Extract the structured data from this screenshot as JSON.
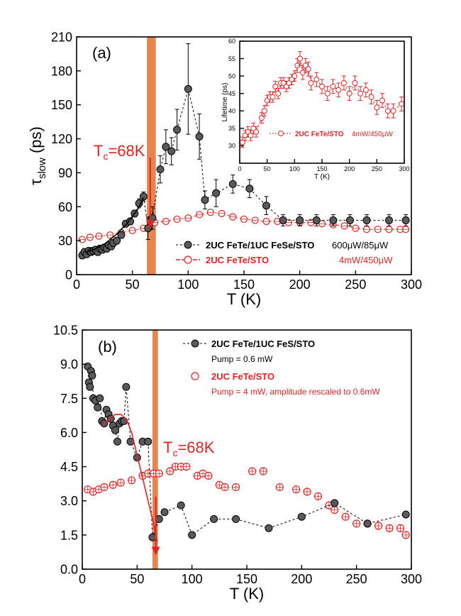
{
  "colors": {
    "black_series": "#5a5a5a",
    "red_series": "#e32222",
    "tc_band": "#e8844e",
    "annotation": "#e32222"
  },
  "chart_data": [
    {
      "type": "scatter",
      "panel_label": "(a)",
      "xlabel": "T (K)",
      "ylabel_main": "τ",
      "ylabel_sub": "slow",
      "ylabel_unit": " (ps)",
      "xlim": [
        0,
        300
      ],
      "ylim": [
        0,
        210
      ],
      "xticks": [
        0,
        50,
        100,
        150,
        200,
        250,
        300
      ],
      "yticks": [
        0,
        30,
        60,
        90,
        120,
        150,
        180,
        210
      ],
      "tc_band": [
        63,
        71
      ],
      "tc_label": "T",
      "tc_sub": "c",
      "tc_value": "=68K",
      "legend": [
        {
          "name": "2UC FeTe/1UC FeSe/STO",
          "power": "600μW/85μW"
        },
        {
          "name": "2UC FeTe/STO",
          "power": "4mW/450μW"
        }
      ],
      "series": [
        {
          "name": "2UC FeTe/1UC FeSe/STO",
          "x": [
            5,
            7,
            9,
            11,
            13,
            15,
            17,
            19,
            21,
            23,
            25,
            27,
            29,
            31,
            33,
            36,
            40,
            44,
            48,
            52,
            56,
            60,
            64,
            68,
            75,
            80,
            85,
            90,
            100,
            110,
            115,
            125,
            140,
            155,
            170,
            185,
            200,
            215,
            230,
            245,
            260,
            280,
            295
          ],
          "y": [
            17,
            20,
            18,
            21,
            20,
            21,
            22,
            20,
            23,
            22,
            24,
            23,
            26,
            25,
            28,
            30,
            35,
            45,
            47,
            54,
            63,
            69,
            41,
            50,
            93,
            113,
            109,
            128,
            164,
            122,
            66,
            72,
            80,
            76,
            61,
            48,
            48,
            48,
            48,
            48,
            48,
            48,
            48
          ],
          "err": [
            3,
            3,
            3,
            3,
            3,
            3,
            3,
            3,
            3,
            3,
            3,
            3,
            3,
            3,
            3,
            3,
            3,
            3,
            3,
            3,
            4,
            4,
            10,
            10,
            12,
            15,
            12,
            18,
            40,
            20,
            8,
            12,
            8,
            8,
            8,
            5,
            5,
            5,
            5,
            5,
            5,
            5,
            5
          ]
        },
        {
          "name": "2UC FeTe/STO",
          "x": [
            5,
            12,
            20,
            30,
            40,
            50,
            60,
            70,
            80,
            90,
            100,
            110,
            120,
            130,
            140,
            150,
            160,
            170,
            180,
            190,
            200,
            210,
            220,
            230,
            240,
            250,
            260,
            270,
            280,
            290,
            295
          ],
          "y": [
            31,
            33,
            34,
            35,
            37,
            39,
            41,
            46,
            47,
            49,
            50,
            53,
            55,
            54,
            51,
            49,
            48,
            47,
            47,
            46,
            46,
            46,
            45,
            44,
            43,
            41,
            40,
            40,
            40,
            40,
            40
          ]
        }
      ],
      "fit_curve": {
        "x": [
          8,
          15,
          25,
          35,
          45,
          55,
          60
        ],
        "y": [
          20,
          22,
          27,
          35,
          45,
          58,
          68
        ]
      },
      "inset": {
        "xlabel": "T (K)",
        "ylabel": "Lifetime (ps)",
        "xlim": [
          0,
          300
        ],
        "ylim": [
          25,
          60
        ],
        "xticks": [
          0,
          50,
          100,
          150,
          200,
          250,
          300
        ],
        "yticks": [
          30,
          35,
          40,
          45,
          50,
          55,
          60
        ],
        "legend_name": "2UC FeTe/STO",
        "legend_power": "4mW/450μW",
        "x": [
          5,
          10,
          15,
          20,
          25,
          30,
          40,
          45,
          50,
          55,
          60,
          65,
          70,
          75,
          80,
          85,
          90,
          95,
          100,
          105,
          110,
          115,
          120,
          125,
          130,
          140,
          150,
          160,
          170,
          180,
          190,
          200,
          210,
          220,
          230,
          240,
          250,
          260,
          270,
          280,
          295
        ],
        "y": [
          31,
          33,
          34,
          33,
          35,
          34,
          38,
          40,
          43,
          44,
          44,
          47,
          45,
          48,
          48,
          47,
          48,
          49,
          50,
          53,
          55,
          51,
          53,
          52,
          48,
          49,
          47,
          45,
          47,
          46,
          48,
          45,
          48,
          45,
          46,
          44,
          41,
          43,
          40,
          40,
          42
        ],
        "err": [
          1.5,
          1.5,
          1.5,
          1.5,
          1.5,
          1.5,
          1.5,
          1.5,
          1.5,
          1.5,
          1.5,
          1.5,
          1.5,
          1.5,
          1.5,
          1.5,
          1.5,
          1.5,
          1.5,
          2,
          2,
          2,
          2,
          2,
          2,
          2,
          2,
          2,
          2,
          2,
          2,
          2,
          2,
          2,
          2,
          2,
          2,
          2,
          2,
          2,
          2
        ]
      }
    },
    {
      "type": "scatter",
      "panel_label": "(b)",
      "xlabel": "T (K)",
      "ylabel": "",
      "xlim": [
        0,
        300
      ],
      "ylim": [
        0,
        10.5
      ],
      "xticks": [
        0,
        50,
        100,
        150,
        200,
        250,
        300
      ],
      "ytick_labels": [
        "0.0",
        "1.5",
        "3.0",
        "4.5",
        "6.0",
        "7.5",
        "9.0",
        "10.5"
      ],
      "yticks": [
        0,
        1.5,
        3.0,
        4.5,
        6.0,
        7.5,
        9.0,
        10.5
      ],
      "tc_band": [
        64,
        69
      ],
      "tc_label": "T",
      "tc_sub": "c",
      "tc_value": "=68K",
      "legend": [
        {
          "name": "2UC FeTe/1UC FeS/STO",
          "note": "Pump = 0.6 mW"
        },
        {
          "name": "2UC FeTe/STO",
          "note": "Pump = 4 mW, amplitude rescaled to 0.6mW"
        }
      ],
      "series": [
        {
          "name": "2UC FeTe/1UC FeS/STO",
          "x": [
            5,
            6,
            7,
            8,
            9,
            10,
            12,
            14,
            16,
            18,
            20,
            22,
            24,
            26,
            28,
            30,
            32,
            34,
            36,
            38,
            40,
            44,
            50,
            55,
            60,
            64,
            70,
            75,
            90,
            100,
            120,
            140,
            170,
            200,
            230,
            260,
            295
          ],
          "y": [
            8.9,
            8.2,
            8.0,
            8.7,
            8.5,
            7.5,
            7.4,
            7.1,
            7.5,
            6.5,
            6.4,
            7.0,
            6.8,
            6.6,
            6.3,
            6.1,
            5.6,
            6.4,
            6.5,
            6.5,
            8.0,
            5.6,
            4.9,
            5.6,
            5.6,
            1.4,
            2.2,
            2.5,
            2.8,
            1.5,
            2.2,
            2.2,
            1.8,
            2.3,
            2.9,
            2.0,
            2.4
          ]
        },
        {
          "name": "2UC FeTe/STO",
          "x": [
            5,
            10,
            15,
            20,
            28,
            35,
            45,
            55,
            60,
            65,
            70,
            80,
            85,
            90,
            95,
            105,
            110,
            115,
            125,
            130,
            140,
            155,
            165,
            180,
            195,
            205,
            215,
            225,
            230,
            240,
            250,
            260,
            270,
            280,
            290,
            295
          ],
          "y": [
            3.5,
            3.4,
            3.5,
            3.6,
            3.7,
            3.8,
            3.9,
            4.1,
            4.2,
            4.2,
            4.2,
            4.3,
            4.5,
            4.5,
            4.5,
            4.1,
            4.2,
            4.1,
            3.7,
            3.6,
            3.6,
            4.3,
            4.3,
            3.6,
            3.5,
            3.4,
            3.2,
            2.8,
            2.6,
            2.3,
            2.0,
            2.0,
            1.9,
            1.8,
            1.8,
            1.5
          ]
        }
      ],
      "fit_curve": {
        "x": [
          20,
          25,
          30,
          35,
          40,
          45,
          50,
          55,
          60,
          65,
          68
        ],
        "y": [
          6.3,
          6.6,
          6.8,
          6.8,
          6.6,
          6.0,
          5.0,
          4.0,
          3.0,
          2.0,
          1.2
        ]
      }
    }
  ]
}
